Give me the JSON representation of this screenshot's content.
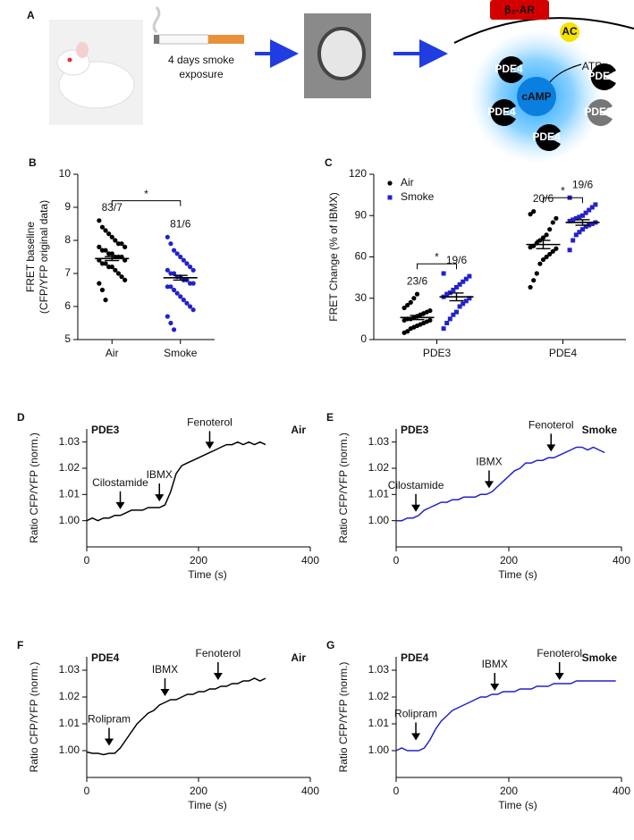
{
  "panel_a": {
    "panel": "A",
    "caption_line1": "4 days smoke",
    "caption_line2": "exposure",
    "receptor": "β₂-AR",
    "ac": "AC",
    "atp": "ATP",
    "camp": "cAMP",
    "pde4": "PDE4",
    "pde3": "PDE3"
  },
  "chart_data": [
    {
      "type": "strip",
      "panel": "B",
      "y_label_line1": "FRET baseline",
      "y_label_line2": "(CFP/YFP original data)",
      "categories": [
        "Air",
        "Smoke"
      ],
      "ylim": [
        5,
        10
      ],
      "yticks": [
        5,
        6,
        7,
        8,
        9,
        10
      ],
      "series": [
        {
          "colors": [
            "#000000",
            "#2222cc"
          ],
          "values": [
            [
              8.6,
              8.4,
              8.3,
              8.2,
              8.1,
              8.0,
              7.9,
              7.9,
              7.8,
              7.8,
              7.7,
              7.7,
              7.6,
              7.6,
              7.5,
              7.5,
              7.5,
              7.4,
              7.4,
              7.3,
              7.3,
              7.2,
              7.2,
              7.1,
              7.0,
              6.9,
              6.8,
              6.7,
              6.5,
              6.2
            ],
            [
              8.1,
              7.9,
              7.7,
              7.6,
              7.5,
              7.4,
              7.3,
              7.2,
              7.1,
              7.1,
              7.0,
              7.0,
              6.9,
              6.9,
              6.8,
              6.8,
              6.7,
              6.7,
              6.6,
              6.6,
              6.5,
              6.4,
              6.3,
              6.2,
              6.1,
              6.0,
              5.9,
              5.7,
              5.5,
              5.3
            ]
          ],
          "means": [
            7.45,
            6.87
          ],
          "sem": [
            0.06,
            0.07
          ],
          "n_labels": [
            "83/7",
            "81/6"
          ]
        }
      ],
      "brackets": [
        {
          "text": "*",
          "y": 9.2
        }
      ]
    },
    {
      "type": "strip",
      "panel": "C",
      "y_label_line1": "FRET Change (% of IBMX)",
      "categories": [
        "PDE3",
        "PDE4"
      ],
      "ylim": [
        0,
        120
      ],
      "yticks": [
        0,
        30,
        60,
        90,
        120
      ],
      "series": [
        {
          "name": "Air",
          "color": "#000000",
          "marker": "circle",
          "values": [
            [
              5,
              6,
              8,
              9,
              10,
              11,
              12,
              13,
              14,
              14,
              15,
              15,
              16,
              17,
              18,
              19,
              20,
              21,
              23,
              25,
              27,
              30,
              33
            ],
            [
              38,
              43,
              48,
              55,
              58,
              60,
              62,
              64,
              66,
              67,
              68,
              70,
              72,
              74,
              76,
              80,
              85,
              88,
              91,
              93
            ]
          ],
          "means": [
            16,
            69
          ],
          "sem": [
            1.5,
            3
          ],
          "n_labels": [
            "23/6",
            "20/6"
          ]
        },
        {
          "name": "Smoke",
          "color": "#2222cc",
          "marker": "square",
          "values": [
            [
              8,
              12,
              15,
              18,
              20,
              24,
              26,
              28,
              30,
              31,
              33,
              34,
              36,
              38,
              40,
              42,
              44,
              46,
              48
            ],
            [
              65,
              72,
              76,
              78,
              80,
              82,
              83,
              84,
              85,
              86,
              87,
              88,
              89,
              90,
              92,
              94,
              96,
              98,
              103
            ]
          ],
          "means": [
            31,
            85
          ],
          "sem": [
            2.8,
            2
          ],
          "n_labels": [
            "19/6",
            "19/6"
          ]
        }
      ],
      "brackets": [
        {
          "text": "*",
          "y": 55
        },
        {
          "text": "*",
          "y": 103
        }
      ]
    },
    {
      "type": "line",
      "panel": "D",
      "label": "PDE3",
      "condition": "Air",
      "color": "#000000",
      "y_label": "Ratio CFP/YFP (norm.)",
      "x_label": "Time (s)",
      "xlim": [
        0,
        400
      ],
      "xticks": [
        0,
        200,
        400
      ],
      "ylim": [
        0.99,
        1.035
      ],
      "yticks": [
        {
          "value": 1,
          "label": "1.00"
        },
        1.01,
        1.02,
        1.03
      ],
      "x": [
        0,
        10,
        20,
        30,
        40,
        50,
        60,
        70,
        80,
        90,
        100,
        110,
        120,
        130,
        140,
        150,
        160,
        170,
        180,
        190,
        200,
        210,
        220,
        230,
        240,
        250,
        260,
        270,
        280,
        290,
        300,
        310,
        320
      ],
      "values": [
        1.0,
        1.001,
        1.0,
        1.001,
        1.001,
        1.002,
        1.002,
        1.003,
        1.004,
        1.004,
        1.004,
        1.005,
        1.005,
        1.005,
        1.006,
        1.011,
        1.018,
        1.021,
        1.022,
        1.023,
        1.024,
        1.025,
        1.026,
        1.027,
        1.028,
        1.029,
        1.029,
        1.03,
        1.029,
        1.03,
        1.029,
        1.03,
        1.029
      ],
      "annotations": [
        {
          "text": "Cilostamide",
          "x": 60,
          "y": 1.003
        },
        {
          "text": "IBMX",
          "x": 130,
          "y": 1.006
        },
        {
          "text": "Fenoterol",
          "x": 220,
          "y": 1.026
        }
      ]
    },
    {
      "type": "line",
      "panel": "E",
      "label": "PDE3",
      "condition": "Smoke",
      "color": "#2222cc",
      "y_label": "Ratio CFP/YFP (norm.)",
      "x_label": "Time (s)",
      "xlim": [
        0,
        400
      ],
      "xticks": [
        0,
        200,
        400
      ],
      "ylim": [
        0.99,
        1.035
      ],
      "yticks": [
        {
          "value": 1,
          "label": "1.00"
        },
        1.01,
        1.02,
        1.03
      ],
      "x": [
        0,
        10,
        20,
        30,
        40,
        50,
        60,
        70,
        80,
        90,
        100,
        110,
        120,
        130,
        140,
        150,
        160,
        170,
        180,
        190,
        200,
        210,
        220,
        230,
        240,
        250,
        260,
        270,
        280,
        290,
        300,
        310,
        320,
        330,
        340,
        350,
        360,
        370
      ],
      "values": [
        1.0,
        1.0,
        1.001,
        1.001,
        1.002,
        1.004,
        1.005,
        1.006,
        1.007,
        1.007,
        1.008,
        1.008,
        1.009,
        1.009,
        1.009,
        1.01,
        1.01,
        1.011,
        1.013,
        1.015,
        1.017,
        1.019,
        1.02,
        1.022,
        1.022,
        1.023,
        1.023,
        1.024,
        1.024,
        1.025,
        1.026,
        1.027,
        1.028,
        1.028,
        1.027,
        1.028,
        1.027,
        1.026
      ],
      "annotations": [
        {
          "text": "Cilostamide",
          "x": 35,
          "y": 1.002
        },
        {
          "text": "IBMX",
          "x": 165,
          "y": 1.011
        },
        {
          "text": "Fenoterol",
          "x": 275,
          "y": 1.025
        }
      ]
    },
    {
      "type": "line",
      "panel": "F",
      "label": "PDE4",
      "condition": "Air",
      "color": "#000000",
      "y_label": "Ratio CFP/YFP (norm.)",
      "x_label": "Time (s)",
      "xlim": [
        0,
        400
      ],
      "xticks": [
        0,
        200,
        400
      ],
      "ylim": [
        0.99,
        1.035
      ],
      "yticks": [
        {
          "value": 1,
          "label": "1.00"
        },
        1.01,
        1.02,
        1.03
      ],
      "x": [
        0,
        10,
        20,
        30,
        40,
        50,
        60,
        70,
        80,
        90,
        100,
        110,
        120,
        130,
        140,
        150,
        160,
        170,
        180,
        190,
        200,
        210,
        220,
        230,
        240,
        250,
        260,
        270,
        280,
        290,
        300,
        310,
        320
      ],
      "values": [
        0.9995,
        0.999,
        0.999,
        0.9985,
        0.999,
        0.999,
        1.001,
        1.004,
        1.007,
        1.01,
        1.012,
        1.014,
        1.015,
        1.017,
        1.018,
        1.019,
        1.019,
        1.02,
        1.021,
        1.021,
        1.022,
        1.022,
        1.023,
        1.023,
        1.024,
        1.024,
        1.025,
        1.025,
        1.026,
        1.026,
        1.027,
        1.026,
        1.027
      ],
      "annotations": [
        {
          "text": "Rolipram",
          "x": 40,
          "y": 1.0005
        },
        {
          "text": "IBMX",
          "x": 140,
          "y": 1.019
        },
        {
          "text": "Fenoterol",
          "x": 235,
          "y": 1.025
        }
      ]
    },
    {
      "type": "line",
      "panel": "G",
      "label": "PDE4",
      "condition": "Smoke",
      "color": "#2222cc",
      "y_label": "Ratio CFP/YFP (norm.)",
      "x_label": "Time (s)",
      "xlim": [
        0,
        400
      ],
      "xticks": [
        0,
        200,
        400
      ],
      "ylim": [
        0.99,
        1.035
      ],
      "yticks": [
        {
          "value": 1,
          "label": "1.00"
        },
        1.01,
        1.02,
        1.03
      ],
      "x": [
        0,
        10,
        20,
        30,
        40,
        50,
        60,
        70,
        80,
        90,
        100,
        110,
        120,
        130,
        140,
        150,
        160,
        170,
        180,
        190,
        200,
        210,
        220,
        230,
        240,
        250,
        260,
        270,
        280,
        290,
        300,
        310,
        320,
        330,
        340,
        350,
        360,
        370,
        380,
        390
      ],
      "values": [
        1.0,
        1.001,
        1.0,
        1.0,
        1.0,
        1.001,
        1.004,
        1.008,
        1.011,
        1.013,
        1.015,
        1.016,
        1.017,
        1.018,
        1.019,
        1.02,
        1.02,
        1.021,
        1.021,
        1.022,
        1.022,
        1.022,
        1.023,
        1.023,
        1.023,
        1.024,
        1.024,
        1.024,
        1.025,
        1.025,
        1.025,
        1.025,
        1.026,
        1.026,
        1.026,
        1.026,
        1.026,
        1.026,
        1.026,
        1.026
      ],
      "annotations": [
        {
          "text": "Rolipram",
          "x": 35,
          "y": 1.0025
        },
        {
          "text": "IBMX",
          "x": 175,
          "y": 1.021
        },
        {
          "text": "Fenoterol",
          "x": 290,
          "y": 1.025
        }
      ]
    }
  ]
}
